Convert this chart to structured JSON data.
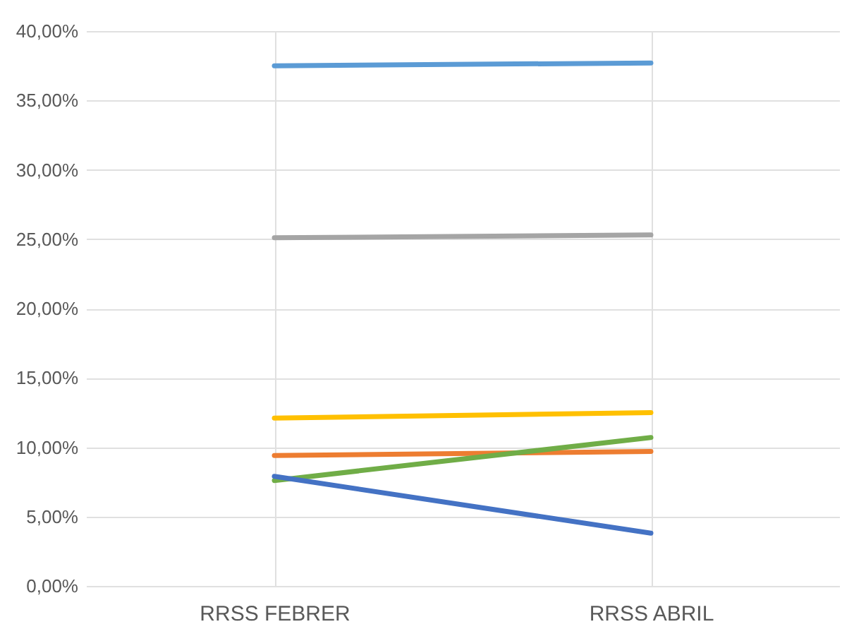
{
  "chart_data": {
    "type": "line",
    "categories": [
      "RRSS FEBRER",
      "RRSS ABRIL"
    ],
    "series": [
      {
        "color": "#5b9bd5",
        "values": [
          37.5,
          37.7
        ]
      },
      {
        "color": "#a5a5a5",
        "values": [
          25.1,
          25.3
        ]
      },
      {
        "color": "#ffc000",
        "values": [
          12.1,
          12.5
        ]
      },
      {
        "color": "#ed7d31",
        "values": [
          9.4,
          9.7
        ]
      },
      {
        "color": "#70ad47",
        "values": [
          7.6,
          10.7
        ]
      },
      {
        "color": "#4472c4",
        "values": [
          7.9,
          3.8
        ]
      }
    ],
    "ylim": [
      0,
      40
    ],
    "yticks": [
      {
        "value": 0,
        "label": "0,00%"
      },
      {
        "value": 5,
        "label": "5,00%"
      },
      {
        "value": 10,
        "label": "10,00%"
      },
      {
        "value": 15,
        "label": "15,00%"
      },
      {
        "value": 20,
        "label": "20,00%"
      },
      {
        "value": 25,
        "label": "25,00%"
      },
      {
        "value": 30,
        "label": "30,00%"
      },
      {
        "value": 35,
        "label": "35,00%"
      },
      {
        "value": 40,
        "label": "40,00%"
      }
    ],
    "grid": true,
    "legend": false,
    "marker": "none",
    "line_style": "solid"
  }
}
